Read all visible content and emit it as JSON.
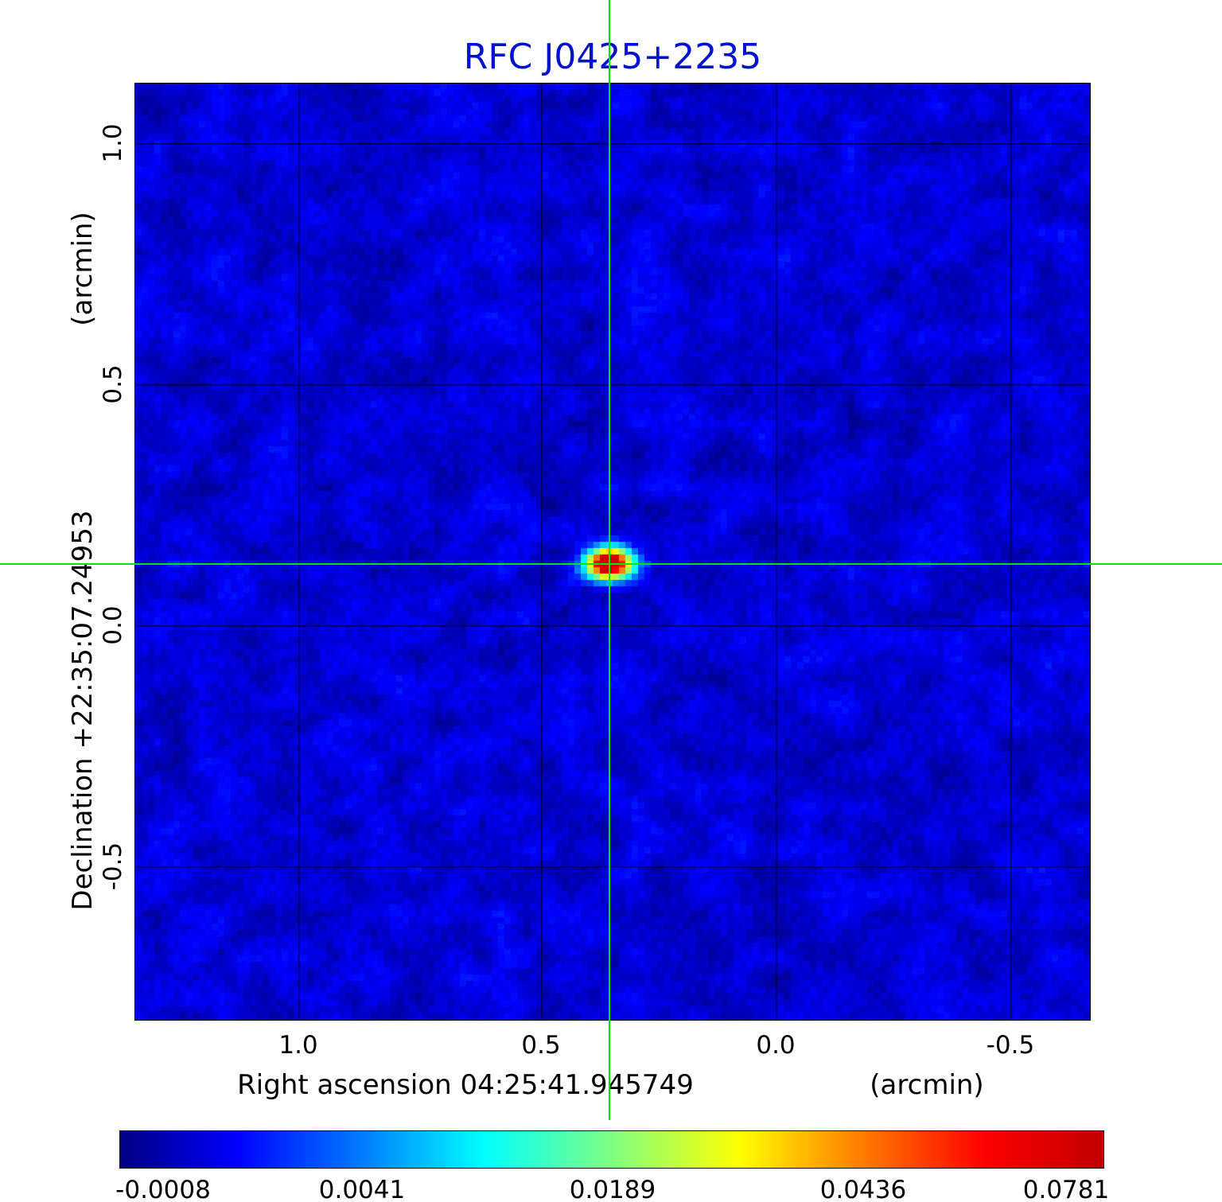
{
  "figure": {
    "title": "RFC J0425+2235",
    "title_color": "#0011cf",
    "background_color": "#ffffff"
  },
  "axes": {
    "x": {
      "label": "Right ascension  04:25:41.945749",
      "unit": "(arcmin)",
      "ticks": [
        "1.0",
        "0.5",
        "0.0",
        "-0.5"
      ]
    },
    "y": {
      "label": "Declination  +22:35:07.24953",
      "unit": "(arcmin)",
      "ticks": [
        "1.0",
        "0.5",
        "0.0",
        "-0.5"
      ]
    }
  },
  "colorbar": {
    "ticks": [
      "-0.0008",
      "0.0041",
      "0.0189",
      "0.0436",
      "0.0781"
    ]
  },
  "crosshair": {
    "color": "#00e400"
  },
  "chart_data": {
    "type": "heatmap",
    "title": "RFC J0425+2235",
    "xlabel": "Right ascension  04:25:41.945749",
    "xunit": "(arcmin)",
    "ylabel": "Declination  +22:35:07.24953",
    "yunit": "(arcmin)",
    "x_ticks_arcmin": [
      1.0,
      0.5,
      0.0,
      -0.5
    ],
    "y_ticks_arcmin": [
      1.0,
      0.5,
      0.0,
      -0.5
    ],
    "x_range_arcmin": [
      1.34,
      -0.66
    ],
    "y_range_arcmin": [
      -0.82,
      1.12
    ],
    "grid": true,
    "colormap": "jet",
    "intensity_ticks": [
      -0.0008,
      0.0041,
      0.0189,
      0.0436,
      0.0781
    ],
    "intensity_min": -0.0008,
    "intensity_max": 0.0781,
    "background": "blue noise field near 0 intensity with faint diagonal sidelobe streaks",
    "source": {
      "x_arcmin": 0.35,
      "y_arcmin": 0.13,
      "peak_intensity": 0.0781,
      "description": "single compact bright source, red core with yellow/green/cyan halo, slightly elongated E-W"
    },
    "crosshair_arcmin": {
      "x": 0.35,
      "y": 0.13,
      "color": "#00e400"
    },
    "legend_position": "bottom colorbar"
  }
}
